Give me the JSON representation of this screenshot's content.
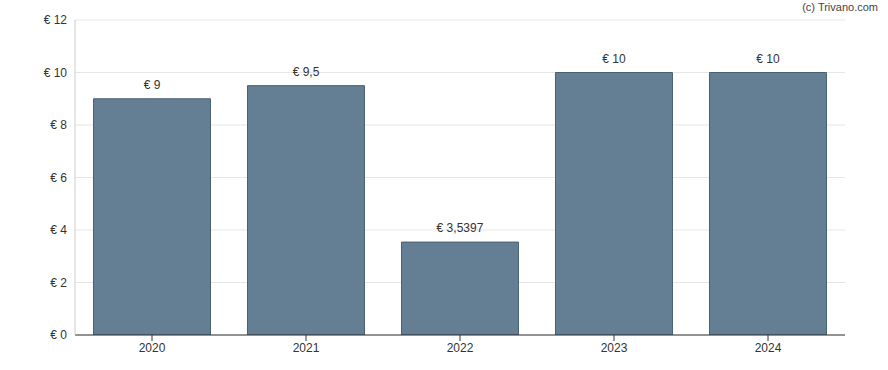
{
  "chart_data": {
    "type": "bar",
    "categories": [
      "2020",
      "2021",
      "2022",
      "2023",
      "2024"
    ],
    "values": [
      9,
      9.5,
      3.5397,
      10,
      10
    ],
    "value_labels": [
      "€ 9",
      "€ 9,5",
      "€ 3,5397",
      "€ 10",
      "€ 10"
    ],
    "data_labels": true,
    "color": "#647f93",
    "ylim": [
      0,
      12
    ],
    "yticks": [
      {
        "value": 0,
        "label": "€ 0"
      },
      {
        "value": 2,
        "label": "€ 2"
      },
      {
        "value": 4,
        "label": "€ 4"
      },
      {
        "value": 6,
        "label": "€ 6"
      },
      {
        "value": 8,
        "label": "€ 8"
      },
      {
        "value": 10,
        "label": "€ 10"
      },
      {
        "value": 12,
        "label": "€ 12"
      }
    ],
    "grid": true,
    "annotations": [
      "(c) Trivano.com"
    ]
  }
}
